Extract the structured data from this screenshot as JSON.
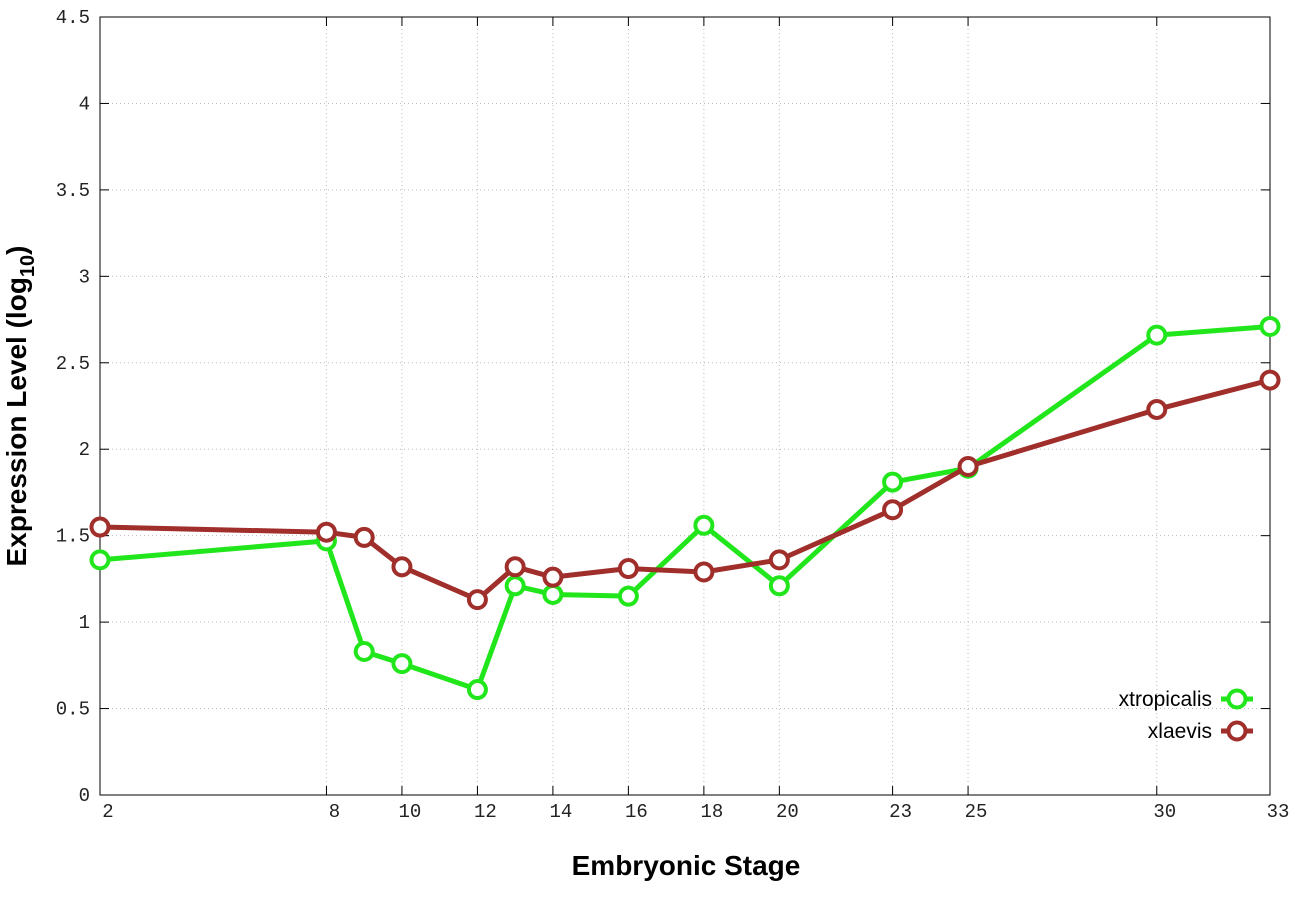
{
  "chart_data": {
    "type": "line",
    "x_label": "Embryonic Stage",
    "y_label": [
      "Expression Level (log",
      "10",
      ")"
    ],
    "x": [
      2,
      8,
      9,
      10,
      12,
      13,
      14,
      16,
      18,
      20,
      23,
      25,
      30,
      33
    ],
    "series": [
      {
        "name": "xtropicalis",
        "color": "#22e61c",
        "values": [
          1.36,
          1.47,
          0.83,
          0.76,
          0.61,
          1.21,
          1.16,
          1.15,
          1.56,
          1.21,
          1.81,
          1.89,
          2.66,
          2.71
        ]
      },
      {
        "name": "xlaevis",
        "color": "#a02e2a",
        "values": [
          1.55,
          1.52,
          1.49,
          1.32,
          1.13,
          1.32,
          1.26,
          1.31,
          1.29,
          1.36,
          1.65,
          1.9,
          2.23,
          2.4
        ]
      }
    ],
    "xlim": [
      2,
      33
    ],
    "xticks": [
      2,
      8,
      10,
      12,
      14,
      16,
      18,
      20,
      23,
      25,
      30,
      33
    ],
    "ylim": [
      0,
      4.5
    ],
    "yticks": [
      0,
      0.5,
      1,
      1.5,
      2,
      2.5,
      3,
      3.5,
      4,
      4.5
    ],
    "grid": true,
    "legend": "lower-right"
  }
}
